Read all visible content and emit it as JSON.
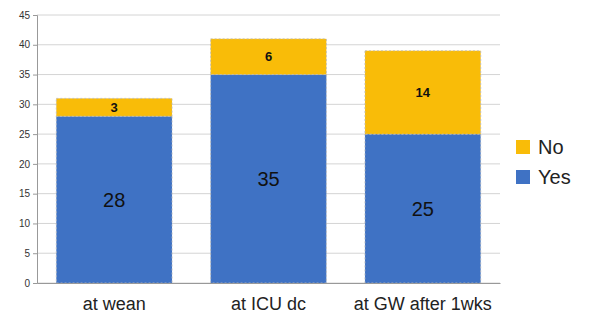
{
  "chart_data": {
    "type": "bar",
    "stacked": true,
    "data_labels": true,
    "grid": true,
    "legend": "right",
    "categories": [
      "at wean",
      "at ICU dc",
      "at GW after 1wks"
    ],
    "series": [
      {
        "name": "Yes",
        "color": "#3f72c4",
        "values": [
          28,
          35,
          25
        ]
      },
      {
        "name": "No",
        "color": "#f9bc08",
        "values": [
          3,
          6,
          14
        ]
      }
    ],
    "ylim": [
      0,
      45
    ],
    "yticks": [
      0,
      5,
      10,
      15,
      20,
      25,
      30,
      35,
      40,
      45
    ]
  }
}
